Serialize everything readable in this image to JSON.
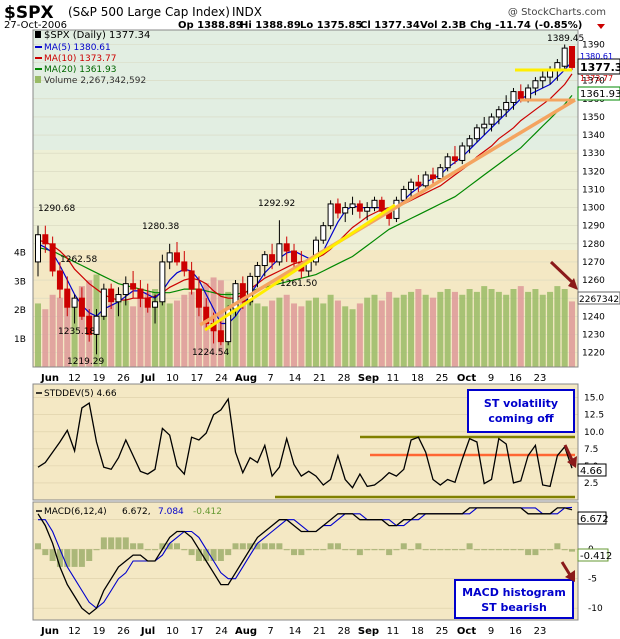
{
  "header": {
    "symbol": "$SPX",
    "name": "(S&P 500 Large Cap Index)",
    "exchange": "INDX",
    "date": "27-Oct-2006",
    "watermark": "@ StockCharts.com",
    "open": "Op 1388.89",
    "high": "Hi 1388.89",
    "low": "Lo 1375.85",
    "close": "Cl 1377.34",
    "volume": "Vol 2.3B",
    "change": "Chg -11.74 (-0.85%)",
    "change_color": "#cc0000"
  },
  "legend": {
    "main": "$SPX (Daily) 1377.34",
    "ma5": "MA(5) 1380.61",
    "ma10": "MA(10) 1373.77",
    "ma20": "MA(20) 1361.93",
    "volume": "Volume 2,267,342,592",
    "stddev": "STDDEV(5) 4.66",
    "macd_name": "MACD(6,12,4)",
    "macd_line": "6.672,",
    "macd_signal": "7.084",
    "macd_hist": "-0.412"
  },
  "price_labels": {
    "high_label": "1389.45",
    "current_box": "1377.34",
    "ma_box_1": "1380.61",
    "ma_box_2": "1373.77",
    "ma20_box": "1361.93",
    "volume_box": "2267342",
    "low_1": "1290.68",
    "low_2": "1262.58",
    "low_3": "1235.18",
    "low_4": "1219.29",
    "low_5": "1280.38",
    "low_6": "1224.54",
    "low_7": "1292.92",
    "low_8": "1261.50"
  },
  "volume_axis": [
    "4B",
    "3B",
    "2B",
    "1B"
  ],
  "x_axis": [
    "Jun",
    "12",
    "19",
    "26",
    "Jul",
    "10",
    "17",
    "24",
    "Aug",
    "7",
    "14",
    "21",
    "28",
    "Sep",
    "11",
    "18",
    "25",
    "Oct",
    "9",
    "16",
    "23"
  ],
  "annotations": {
    "box1_line1": "ST volatility",
    "box1_line2": "coming off",
    "box2_line1": "MACD histogram",
    "box2_line2": "ST bearish"
  },
  "stddev_box": "4.66",
  "macd_box_1": "6.672",
  "macd_box_2": "-0.412",
  "colors": {
    "up_candle": "#000000",
    "down_candle": "#cc0000",
    "ma5": "#0000cc",
    "ma10": "#cc0000",
    "ma20": "#008800",
    "volume_up": "#99bb66",
    "volume_down": "#dd9999",
    "support": "#f4a460",
    "trend_yellow": "#ffff00",
    "annotation_text": "#0000cc"
  },
  "chart_data": [
    {
      "type": "candlestick",
      "title": "$SPX (S&P 500 Large Cap Index)",
      "ylim": [
        1212,
        1398
      ],
      "yticks": [
        1220,
        1230,
        1240,
        1250,
        1260,
        1270,
        1280,
        1290,
        1300,
        1310,
        1320,
        1330,
        1340,
        1350,
        1360,
        1370,
        1380,
        1390
      ],
      "ohlc": [
        [
          1270,
          1290,
          1262,
          1285
        ],
        [
          1285,
          1290,
          1275,
          1280
        ],
        [
          1280,
          1284,
          1262,
          1265
        ],
        [
          1265,
          1270,
          1250,
          1255
        ],
        [
          1255,
          1262,
          1240,
          1245
        ],
        [
          1245,
          1252,
          1236,
          1250
        ],
        [
          1250,
          1256,
          1238,
          1240
        ],
        [
          1240,
          1244,
          1226,
          1230
        ],
        [
          1230,
          1244,
          1219,
          1240
        ],
        [
          1240,
          1258,
          1238,
          1255
        ],
        [
          1255,
          1258,
          1244,
          1248
        ],
        [
          1248,
          1256,
          1240,
          1252
        ],
        [
          1252,
          1262,
          1246,
          1258
        ],
        [
          1258,
          1265,
          1250,
          1255
        ],
        [
          1255,
          1260,
          1245,
          1250
        ],
        [
          1250,
          1258,
          1242,
          1245
        ],
        [
          1245,
          1252,
          1236,
          1248
        ],
        [
          1248,
          1274,
          1246,
          1270
        ],
        [
          1270,
          1280,
          1266,
          1275
        ],
        [
          1275,
          1281,
          1268,
          1270
        ],
        [
          1270,
          1276,
          1262,
          1265
        ],
        [
          1265,
          1270,
          1252,
          1255
        ],
        [
          1255,
          1262,
          1240,
          1245
        ],
        [
          1245,
          1250,
          1232,
          1236
        ],
        [
          1236,
          1242,
          1225,
          1232
        ],
        [
          1232,
          1238,
          1224,
          1226
        ],
        [
          1226,
          1246,
          1224,
          1244
        ],
        [
          1244,
          1260,
          1240,
          1258
        ],
        [
          1258,
          1262,
          1244,
          1248
        ],
        [
          1248,
          1264,
          1246,
          1262
        ],
        [
          1262,
          1270,
          1256,
          1268
        ],
        [
          1268,
          1276,
          1262,
          1274
        ],
        [
          1274,
          1280,
          1266,
          1270
        ],
        [
          1270,
          1293,
          1268,
          1280
        ],
        [
          1280,
          1284,
          1270,
          1276
        ],
        [
          1276,
          1280,
          1264,
          1270
        ],
        [
          1270,
          1276,
          1261,
          1265
        ],
        [
          1265,
          1272,
          1262,
          1270
        ],
        [
          1270,
          1284,
          1268,
          1282
        ],
        [
          1282,
          1292,
          1280,
          1290
        ],
        [
          1290,
          1304,
          1288,
          1302
        ],
        [
          1302,
          1305,
          1294,
          1297
        ],
        [
          1297,
          1303,
          1292,
          1300
        ],
        [
          1300,
          1306,
          1296,
          1302
        ],
        [
          1302,
          1304,
          1294,
          1298
        ],
        [
          1298,
          1303,
          1293,
          1300
        ],
        [
          1300,
          1306,
          1298,
          1304
        ],
        [
          1304,
          1306,
          1296,
          1298
        ],
        [
          1298,
          1300,
          1290,
          1294
        ],
        [
          1294,
          1306,
          1292,
          1304
        ],
        [
          1304,
          1312,
          1302,
          1310
        ],
        [
          1310,
          1316,
          1306,
          1314
        ],
        [
          1314,
          1318,
          1308,
          1312
        ],
        [
          1312,
          1320,
          1310,
          1318
        ],
        [
          1318,
          1322,
          1312,
          1316
        ],
        [
          1316,
          1324,
          1314,
          1322
        ],
        [
          1322,
          1330,
          1320,
          1328
        ],
        [
          1328,
          1334,
          1324,
          1326
        ],
        [
          1326,
          1336,
          1324,
          1334
        ],
        [
          1334,
          1340,
          1330,
          1338
        ],
        [
          1338,
          1346,
          1336,
          1344
        ],
        [
          1344,
          1350,
          1340,
          1346
        ],
        [
          1346,
          1352,
          1342,
          1350
        ],
        [
          1350,
          1356,
          1346,
          1354
        ],
        [
          1354,
          1362,
          1350,
          1358
        ],
        [
          1358,
          1366,
          1354,
          1364
        ],
        [
          1364,
          1368,
          1358,
          1360
        ],
        [
          1360,
          1368,
          1358,
          1366
        ],
        [
          1366,
          1372,
          1362,
          1370
        ],
        [
          1370,
          1376,
          1366,
          1372
        ],
        [
          1372,
          1378,
          1368,
          1376
        ],
        [
          1376,
          1382,
          1370,
          1380
        ],
        [
          1378,
          1390,
          1376,
          1388
        ],
        [
          1388.89,
          1388.89,
          1375.85,
          1377.34
        ]
      ],
      "ma5": [
        1280,
        1278,
        1275,
        1268,
        1260,
        1252,
        1246,
        1242,
        1240,
        1244,
        1246,
        1248,
        1251,
        1254,
        1254,
        1252,
        1250,
        1254,
        1260,
        1264,
        1266,
        1265,
        1260,
        1252,
        1244,
        1236,
        1236,
        1240,
        1246,
        1252,
        1258,
        1264,
        1268,
        1272,
        1275,
        1276,
        1274,
        1272,
        1272,
        1276,
        1284,
        1292,
        1298,
        1301,
        1300,
        1300,
        1300,
        1300,
        1298,
        1300,
        1304,
        1308,
        1311,
        1314,
        1316,
        1318,
        1322,
        1325,
        1328,
        1332,
        1336,
        1340,
        1344,
        1348,
        1352,
        1356,
        1360,
        1362,
        1364,
        1366,
        1368,
        1372,
        1376,
        1380.61
      ],
      "ma10": [
        1282,
        1281,
        1279,
        1276,
        1272,
        1266,
        1262,
        1258,
        1255,
        1252,
        1250,
        1249,
        1249,
        1250,
        1250,
        1250,
        1251,
        1253,
        1256,
        1258,
        1260,
        1261,
        1260,
        1258,
        1254,
        1251,
        1250,
        1250,
        1252,
        1255,
        1258,
        1261,
        1263,
        1265,
        1267,
        1269,
        1270,
        1271,
        1272,
        1274,
        1277,
        1281,
        1285,
        1289,
        1292,
        1295,
        1297,
        1299,
        1300,
        1301,
        1302,
        1304,
        1306,
        1308,
        1310,
        1312,
        1315,
        1318,
        1321,
        1324,
        1328,
        1331,
        1334,
        1338,
        1341,
        1344,
        1348,
        1351,
        1354,
        1357,
        1360,
        1364,
        1368,
        1373.77
      ],
      "ma20": [
        1278,
        1277,
        1276,
        1274,
        1272,
        1270,
        1268,
        1266,
        1264,
        1262,
        1260,
        1258,
        1257,
        1256,
        1255,
        1254,
        1253,
        1253,
        1253,
        1254,
        1255,
        1255,
        1255,
        1254,
        1253,
        1252,
        1252,
        1252,
        1253,
        1254,
        1255,
        1256,
        1257,
        1258,
        1259,
        1260,
        1261,
        1262,
        1263,
        1265,
        1267,
        1269,
        1271,
        1273,
        1276,
        1279,
        1282,
        1285,
        1288,
        1290,
        1292,
        1294,
        1296,
        1298,
        1300,
        1302,
        1304,
        1306,
        1309,
        1312,
        1315,
        1318,
        1321,
        1324,
        1327,
        1330,
        1333,
        1337,
        1341,
        1345,
        1349,
        1353,
        1357,
        1361.93
      ]
    },
    {
      "type": "bar",
      "title": "Volume",
      "ylim": [
        0,
        4.5
      ],
      "yticks": [
        "1B",
        "2B",
        "3B",
        "4B"
      ],
      "values": [
        2.2,
        2.0,
        2.5,
        2.4,
        2.6,
        2.3,
        2.8,
        3.0,
        3.2,
        2.6,
        2.2,
        2.4,
        2.3,
        2.1,
        2.5,
        2.6,
        2.7,
        2.4,
        2.2,
        2.3,
        2.5,
        2.6,
        2.7,
        2.9,
        3.1,
        3.0,
        2.6,
        2.4,
        2.5,
        2.3,
        2.2,
        2.1,
        2.3,
        2.4,
        2.5,
        2.2,
        2.1,
        2.3,
        2.4,
        2.2,
        2.5,
        2.3,
        2.1,
        2.0,
        2.2,
        2.4,
        2.5,
        2.3,
        2.6,
        2.4,
        2.5,
        2.6,
        2.7,
        2.5,
        2.4,
        2.6,
        2.7,
        2.6,
        2.5,
        2.7,
        2.6,
        2.8,
        2.7,
        2.6,
        2.5,
        2.7,
        2.8,
        2.6,
        2.7,
        2.5,
        2.6,
        2.8,
        2.7,
        2.27
      ]
    },
    {
      "type": "line",
      "title": "STDDEV(5)",
      "ylim": [
        0,
        17
      ],
      "yticks": [
        2.5,
        5.0,
        7.5,
        10.0,
        12.5,
        15.0
      ],
      "values": [
        4.8,
        5.5,
        7.0,
        8.5,
        10.2,
        7.2,
        13.5,
        14.2,
        8.5,
        4.8,
        4.5,
        6.2,
        8.8,
        6.5,
        4.2,
        3.8,
        4.5,
        10.5,
        9.5,
        5.0,
        3.8,
        9.2,
        8.8,
        9.8,
        12.5,
        13.2,
        14.8,
        7.0,
        4.0,
        6.2,
        5.5,
        8.0,
        3.5,
        4.8,
        9.0,
        5.2,
        3.5,
        4.2,
        3.5,
        2.2,
        3.0,
        6.5,
        3.0,
        1.8,
        3.8,
        2.0,
        2.2,
        3.0,
        4.0,
        3.5,
        4.5,
        8.8,
        9.2,
        7.0,
        3.0,
        2.2,
        3.0,
        2.6,
        6.0,
        9.0,
        8.5,
        2.4,
        3.0,
        9.0,
        8.2,
        2.5,
        2.8,
        6.5,
        8.0,
        2.2,
        2.0,
        6.5,
        7.8,
        4.66
      ],
      "level_lines": [
        2.0,
        7.5,
        9.5
      ]
    },
    {
      "type": "line",
      "title": "MACD(6,12,4)",
      "ylim": [
        -12,
        8
      ],
      "yticks": [
        -10,
        -5,
        0,
        5
      ],
      "macd": [
        6,
        4,
        1,
        -3,
        -6,
        -8,
        -10,
        -11,
        -10,
        -7,
        -5,
        -3,
        -2,
        -1,
        -1,
        -2,
        -2,
        0,
        2,
        3,
        3,
        2,
        0,
        -2,
        -4,
        -6,
        -6,
        -4,
        -2,
        0,
        2,
        3,
        4,
        5,
        5,
        4,
        3,
        3,
        3,
        4,
        5,
        6,
        6,
        6,
        5,
        5,
        5,
        5,
        4,
        4,
        5,
        5,
        6,
        6,
        6,
        6,
        6,
        6,
        6,
        7,
        7,
        7,
        7,
        7,
        7,
        7,
        7,
        6,
        6,
        6,
        6,
        7,
        7,
        6.672
      ],
      "signal": [
        5,
        5,
        3,
        0,
        -3,
        -5,
        -7,
        -9,
        -10,
        -9,
        -7,
        -5,
        -4,
        -2,
        -2,
        -2,
        -2,
        -1,
        1,
        2,
        3,
        3,
        2,
        0,
        -2,
        -4,
        -5,
        -5,
        -3,
        -1,
        1,
        2,
        3,
        4,
        5,
        5,
        4,
        3,
        3,
        4,
        4,
        5,
        6,
        6,
        6,
        5,
        5,
        5,
        5,
        4,
        4,
        5,
        5,
        6,
        6,
        6,
        6,
        6,
        6,
        6,
        7,
        7,
        7,
        7,
        7,
        7,
        7,
        7,
        7,
        6,
        6,
        6,
        7,
        7.084
      ],
      "histogram": [
        1,
        -1,
        -2,
        -3,
        -3,
        -3,
        -3,
        -2,
        0,
        2,
        2,
        2,
        2,
        1,
        1,
        0,
        0,
        1,
        1,
        1,
        0,
        -1,
        -2,
        -2,
        -2,
        -2,
        -1,
        1,
        1,
        1,
        1,
        1,
        1,
        1,
        0,
        -1,
        -1,
        0,
        0,
        0,
        1,
        1,
        0,
        0,
        -1,
        0,
        0,
        0,
        -1,
        0,
        1,
        0,
        1,
        0,
        0,
        0,
        0,
        0,
        0,
        1,
        0,
        0,
        0,
        0,
        0,
        0,
        0,
        -1,
        -1,
        0,
        0,
        1,
        0,
        -0.412
      ]
    }
  ]
}
